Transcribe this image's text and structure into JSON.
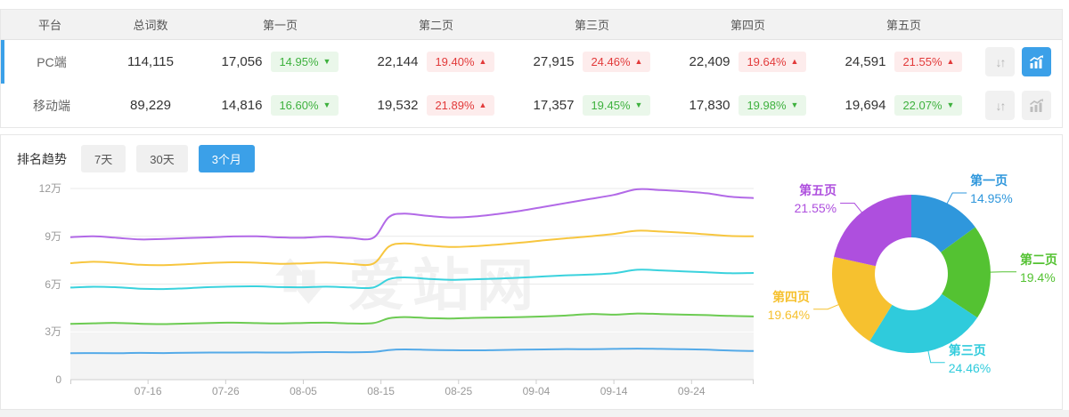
{
  "app": {
    "watermark_text": "爱站网"
  },
  "icons": {
    "sort": "↓↑"
  },
  "colors": {
    "accent_blue": "#3BA0E8",
    "badge_up_red": "#E23A3A",
    "badge_down_green": "#3EB13E",
    "table_header_bg": "#F2F2F2",
    "active_row_border": "#3BA0E8"
  },
  "table": {
    "headers": {
      "platform": "平台",
      "total": "总词数",
      "pages": [
        "第一页",
        "第二页",
        "第三页",
        "第四页",
        "第五页"
      ]
    },
    "rows": [
      {
        "platform": "PC端",
        "total": "114,115",
        "state": "active",
        "chart_state": "on",
        "pages": [
          {
            "count": "17,056",
            "pct": "14.95%",
            "arrow": "▼",
            "dir": "down"
          },
          {
            "count": "22,144",
            "pct": "19.40%",
            "arrow": "▲",
            "dir": "up"
          },
          {
            "count": "27,915",
            "pct": "24.46%",
            "arrow": "▲",
            "dir": "up"
          },
          {
            "count": "22,409",
            "pct": "19.64%",
            "arrow": "▲",
            "dir": "up"
          },
          {
            "count": "24,591",
            "pct": "21.55%",
            "arrow": "▲",
            "dir": "up"
          }
        ]
      },
      {
        "platform": "移动端",
        "total": "89,229",
        "state": "normal",
        "chart_state": "off",
        "pages": [
          {
            "count": "14,816",
            "pct": "16.60%",
            "arrow": "▼",
            "dir": "down"
          },
          {
            "count": "19,532",
            "pct": "21.89%",
            "arrow": "▲",
            "dir": "up"
          },
          {
            "count": "17,357",
            "pct": "19.45%",
            "arrow": "▼",
            "dir": "down"
          },
          {
            "count": "17,830",
            "pct": "19.98%",
            "arrow": "▼",
            "dir": "down"
          },
          {
            "count": "19,694",
            "pct": "22.07%",
            "arrow": "▼",
            "dir": "down"
          }
        ]
      }
    ]
  },
  "trend": {
    "title": "排名趋势",
    "ranges": [
      {
        "label": "7天",
        "state": "idle"
      },
      {
        "label": "30天",
        "state": "idle"
      },
      {
        "label": "3个月",
        "state": "active"
      }
    ]
  },
  "chart_data": [
    {
      "type": "line",
      "title": "排名趋势（3个月）",
      "stacked_cumulative": true,
      "grid": true,
      "ylim_wan": [
        0,
        12
      ],
      "y_unit": "万",
      "y_ticks": [
        {
          "value": 0,
          "label": "0"
        },
        {
          "value": 3,
          "label": "3万"
        },
        {
          "value": 6,
          "label": "6万"
        },
        {
          "value": 9,
          "label": "9万"
        },
        {
          "value": 12,
          "label": "12万"
        }
      ],
      "x_days": [
        0,
        3,
        6,
        9,
        12,
        15,
        18,
        21,
        24,
        27,
        30,
        33,
        36,
        39,
        41,
        43,
        46,
        49,
        52,
        55,
        58,
        61,
        64,
        67,
        70,
        73,
        76,
        79,
        82,
        85,
        88
      ],
      "x_tick_days": [
        10,
        20,
        30,
        40,
        50,
        60,
        70,
        80
      ],
      "x_tick_labels": [
        "07-16",
        "07-26",
        "08-05",
        "08-15",
        "08-25",
        "09-04",
        "09-14",
        "09-24"
      ],
      "series": [
        {
          "name": "第一页",
          "color": "#54AAE8",
          "area": false,
          "values_wan": [
            1.66,
            1.67,
            1.66,
            1.68,
            1.67,
            1.69,
            1.7,
            1.7,
            1.71,
            1.7,
            1.72,
            1.73,
            1.72,
            1.74,
            1.86,
            1.9,
            1.87,
            1.85,
            1.84,
            1.86,
            1.88,
            1.9,
            1.92,
            1.91,
            1.93,
            1.95,
            1.93,
            1.91,
            1.88,
            1.83,
            1.8
          ]
        },
        {
          "name": "第二页",
          "color": "#6CCB52",
          "area": true,
          "area_color": "#f4f4f4",
          "values_wan": [
            3.5,
            3.54,
            3.56,
            3.51,
            3.49,
            3.52,
            3.56,
            3.58,
            3.55,
            3.53,
            3.56,
            3.58,
            3.53,
            3.55,
            3.85,
            3.93,
            3.87,
            3.84,
            3.88,
            3.9,
            3.93,
            3.97,
            4.03,
            4.12,
            4.08,
            4.15,
            4.12,
            4.08,
            4.05,
            4.0,
            3.97
          ]
        },
        {
          "name": "第三页",
          "color": "#3AD2DD",
          "area": false,
          "values_wan": [
            5.78,
            5.83,
            5.8,
            5.71,
            5.69,
            5.74,
            5.81,
            5.85,
            5.86,
            5.81,
            5.8,
            5.84,
            5.79,
            5.78,
            6.3,
            6.42,
            6.33,
            6.27,
            6.3,
            6.34,
            6.4,
            6.48,
            6.55,
            6.6,
            6.68,
            6.9,
            6.86,
            6.8,
            6.74,
            6.68,
            6.7
          ]
        },
        {
          "name": "第四页",
          "color": "#F7C63F",
          "area": false,
          "values_wan": [
            7.31,
            7.4,
            7.33,
            7.21,
            7.19,
            7.25,
            7.33,
            7.37,
            7.34,
            7.27,
            7.3,
            7.35,
            7.27,
            7.28,
            8.35,
            8.55,
            8.42,
            8.33,
            8.38,
            8.48,
            8.6,
            8.75,
            8.88,
            9.0,
            9.15,
            9.35,
            9.3,
            9.22,
            9.12,
            9.02,
            9.0
          ]
        },
        {
          "name": "第五页",
          "color": "#B269E7",
          "area": false,
          "values_wan": [
            8.94,
            9.0,
            8.9,
            8.8,
            8.83,
            8.89,
            8.93,
            8.99,
            9.0,
            8.93,
            8.91,
            8.98,
            8.9,
            8.9,
            10.2,
            10.42,
            10.28,
            10.18,
            10.24,
            10.4,
            10.6,
            10.85,
            11.1,
            11.35,
            11.6,
            11.95,
            11.9,
            11.82,
            11.7,
            11.48,
            11.4
          ]
        }
      ]
    },
    {
      "type": "pie",
      "donut": true,
      "start": "top",
      "direction": "clockwise",
      "labels": [
        "第一页",
        "第二页",
        "第三页",
        "第四页",
        "第五页"
      ],
      "values_pct": [
        14.95,
        19.4,
        24.46,
        19.64,
        21.55
      ],
      "pct_labels": [
        "14.95%",
        "19.4%",
        "24.46%",
        "19.64%",
        "21.55%"
      ],
      "colors": [
        "#2F97DC",
        "#54C232",
        "#2FCBDC",
        "#F6C12F",
        "#AE4FDE"
      ]
    }
  ]
}
